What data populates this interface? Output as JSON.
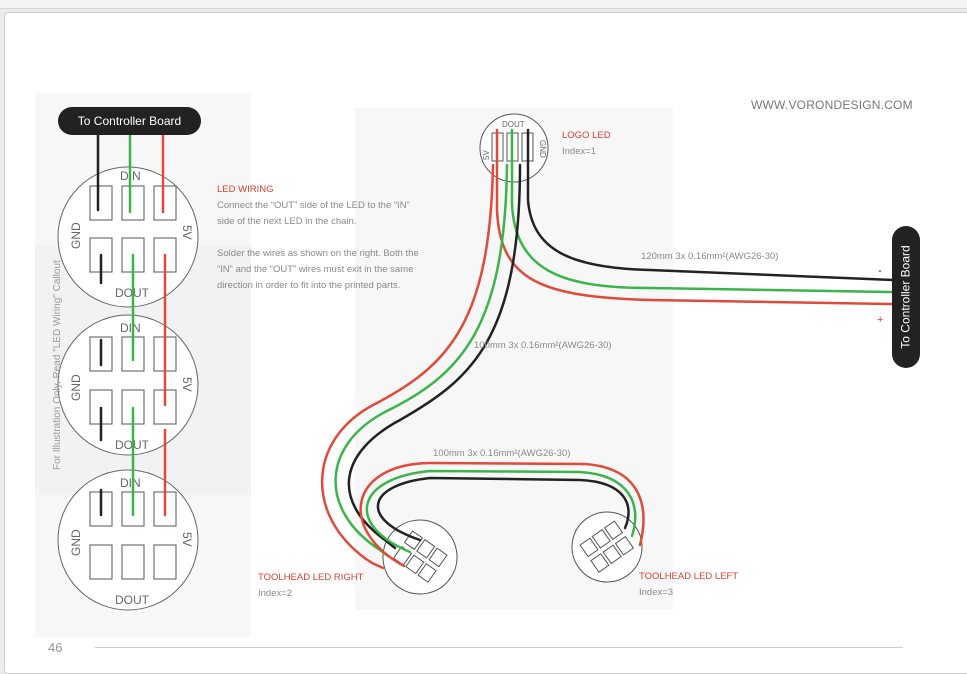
{
  "site_url": "WWW.VORONDESIGN.COM",
  "page_number": "46",
  "controller_label_top": "To Controller Board",
  "controller_label_right": "To Controller Board",
  "callout": "For Illustration Only, Read \"LED Wiring\" Callout",
  "led_wiring": {
    "title": "LED WIRING",
    "line1": "Connect the “OUT” side of the LED to the “IN”",
    "line2": "side of the next LED in the chain.",
    "line3": "Solder the wires as shown on the right. Both the",
    "line4": "“IN” and the “OUT” wires must exit in the same",
    "line5": "direction in order to fit into the printed parts."
  },
  "pads": {
    "din": "DIN",
    "dout": "DOUT",
    "gnd": "GND",
    "v5": "5V"
  },
  "logo_led": {
    "name": "LOGO LED",
    "index": "Index=1"
  },
  "toolhead_right": {
    "name": "TOOLHEAD LED RIGHT",
    "index": "Index=2"
  },
  "toolhead_left": {
    "name": "TOOLHEAD LED LEFT",
    "index": "Index=3"
  },
  "wires": {
    "w120": "120mm 3x 0.16mm²(AWG26-30)",
    "w100a": "100mm 3x 0.16mm²(AWG26-30)",
    "w100b": "100mm 3x 0.16mm²(AWG26-30)"
  },
  "polarity": {
    "minus": "-",
    "plus": "+"
  },
  "colors": {
    "gnd_wire": "#222222",
    "data_wire": "#3bb54a",
    "v5_wire": "#e04a3a",
    "accent": "#d84233"
  }
}
